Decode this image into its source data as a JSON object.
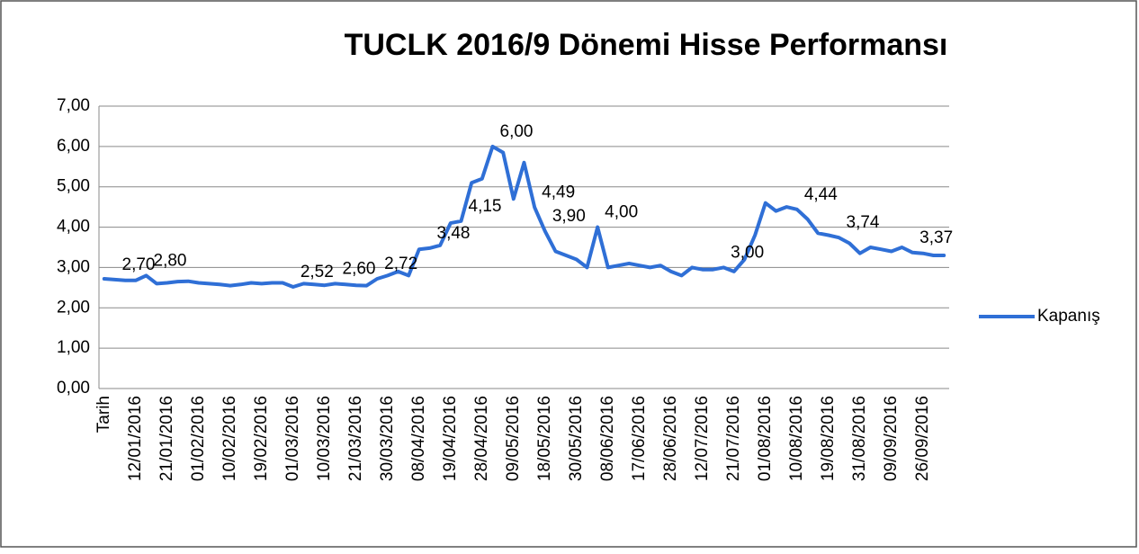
{
  "chart_data": {
    "type": "line",
    "title": "TUCLK 2016/9 Dönemi Hisse Performansı",
    "categories": [
      "Tarih",
      null,
      null,
      "12/01/2016",
      null,
      null,
      "21/01/2016",
      null,
      null,
      "01/02/2016",
      null,
      null,
      "10/02/2016",
      null,
      null,
      "19/02/2016",
      null,
      null,
      "01/03/2016",
      null,
      null,
      "10/03/2016",
      null,
      null,
      "21/03/2016",
      null,
      null,
      "30/03/2016",
      null,
      null,
      "08/04/2016",
      null,
      null,
      "19/04/2016",
      null,
      null,
      "28/04/2016",
      null,
      null,
      "09/05/2016",
      null,
      null,
      "18/05/2016",
      null,
      null,
      "30/05/2016",
      null,
      null,
      "08/06/2016",
      null,
      null,
      "17/06/2016",
      null,
      null,
      "28/06/2016",
      null,
      null,
      "12/07/2016",
      null,
      null,
      "21/07/2016",
      null,
      null,
      "01/08/2016",
      null,
      null,
      "10/08/2016",
      null,
      null,
      "19/08/2016",
      null,
      null,
      "31/08/2016",
      null,
      null,
      "09/09/2016",
      null,
      null,
      "26/09/2016",
      null,
      null
    ],
    "series": [
      {
        "name": "Kapanış",
        "color": "#2f6fd6",
        "values": [
          2.72,
          2.7,
          2.68,
          2.68,
          2.8,
          2.6,
          2.62,
          2.65,
          2.66,
          2.62,
          2.6,
          2.58,
          2.55,
          2.58,
          2.62,
          2.6,
          2.62,
          2.62,
          2.52,
          2.6,
          2.58,
          2.56,
          2.6,
          2.58,
          2.56,
          2.55,
          2.72,
          2.8,
          2.9,
          2.8,
          3.45,
          3.48,
          3.55,
          4.1,
          4.15,
          5.1,
          5.2,
          6.0,
          5.85,
          4.7,
          5.6,
          4.49,
          3.9,
          3.4,
          3.3,
          3.2,
          3.0,
          4.0,
          3.0,
          3.05,
          3.1,
          3.05,
          3.0,
          3.05,
          2.9,
          2.8,
          3.0,
          2.95,
          2.95,
          3.0,
          2.9,
          3.2,
          3.8,
          4.6,
          4.4,
          4.5,
          4.44,
          4.2,
          3.85,
          3.8,
          3.74,
          3.6,
          3.35,
          3.5,
          3.45,
          3.4,
          3.5,
          3.37,
          3.35,
          3.3,
          3.3
        ],
        "value_labels": [
          null,
          "2,70",
          null,
          null,
          "2,80",
          null,
          null,
          null,
          null,
          null,
          null,
          null,
          null,
          null,
          null,
          null,
          null,
          null,
          "2,52",
          null,
          null,
          null,
          "2,60",
          null,
          null,
          null,
          "2,72",
          null,
          null,
          null,
          null,
          "3,48",
          null,
          null,
          "4,15",
          null,
          null,
          "6,00",
          null,
          null,
          null,
          "4,49",
          "3,90",
          null,
          null,
          null,
          null,
          "4,00",
          null,
          null,
          null,
          null,
          null,
          null,
          null,
          null,
          null,
          null,
          null,
          "3,00",
          null,
          null,
          null,
          null,
          null,
          null,
          "4,44",
          null,
          null,
          null,
          "3,74",
          null,
          null,
          null,
          null,
          null,
          null,
          "3,37",
          null,
          null,
          null
        ]
      }
    ],
    "ylim": [
      0,
      7
    ],
    "yticks": [
      {
        "value": 0,
        "label": "0,00"
      },
      {
        "value": 1,
        "label": "1,00"
      },
      {
        "value": 2,
        "label": "2,00"
      },
      {
        "value": 3,
        "label": "3,00"
      },
      {
        "value": 4,
        "label": "4,00"
      },
      {
        "value": 5,
        "label": "5,00"
      },
      {
        "value": 6,
        "label": "6,00"
      },
      {
        "value": 7,
        "label": "7,00"
      }
    ],
    "grid": true,
    "legend": "right"
  }
}
